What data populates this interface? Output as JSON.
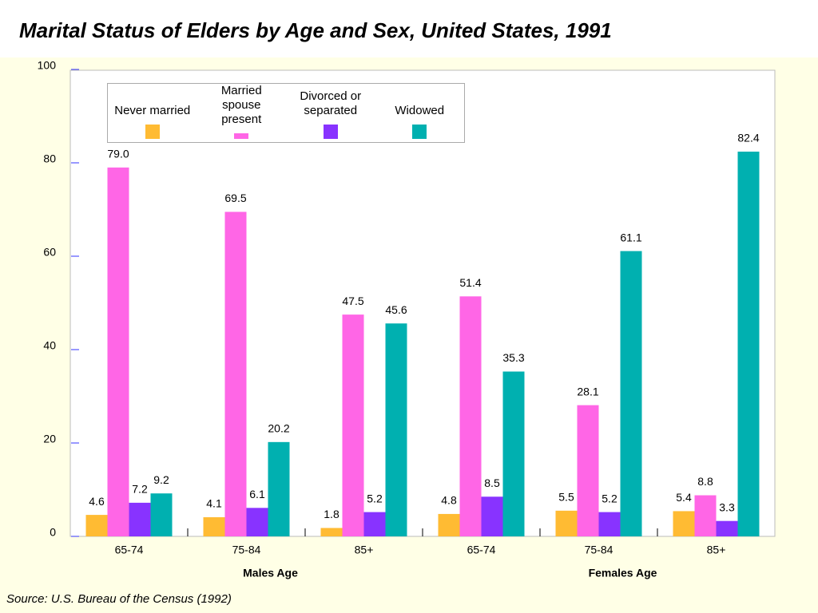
{
  "chart_data": {
    "type": "bar",
    "title": "Marital Status of Elders by Age and Sex, United States, 1991",
    "source": "Source: U.S. Bureau of the Census (1992)",
    "categories": [
      "65-74",
      "75-84",
      "85+",
      "65-74",
      "75-84",
      "85+"
    ],
    "groups": [
      {
        "label": "Males Age",
        "size": 3
      },
      {
        "label": "Females Age",
        "size": 3
      }
    ],
    "series": [
      {
        "name": "Never married",
        "color": "#ffbb33",
        "values": [
          4.6,
          4.1,
          1.8,
          4.8,
          5.5,
          5.4
        ]
      },
      {
        "name": "Married spouse present",
        "color": "#ff66e6",
        "values": [
          79.0,
          69.5,
          47.5,
          51.4,
          28.1,
          8.8
        ],
        "value_labels": [
          "79.0",
          "69.5",
          "47.5",
          "51.4",
          "28.1",
          "8.8"
        ]
      },
      {
        "name": "Divorced or separated",
        "color": "#8833ff",
        "values": [
          7.2,
          6.1,
          5.2,
          8.5,
          5.2,
          3.3
        ]
      },
      {
        "name": "Widowed",
        "color": "#00b0b0",
        "values": [
          9.2,
          20.2,
          45.6,
          35.3,
          61.1,
          82.4
        ]
      }
    ],
    "ylim": [
      0,
      100
    ],
    "yticks": [
      0,
      20,
      40,
      60,
      80,
      100
    ]
  }
}
